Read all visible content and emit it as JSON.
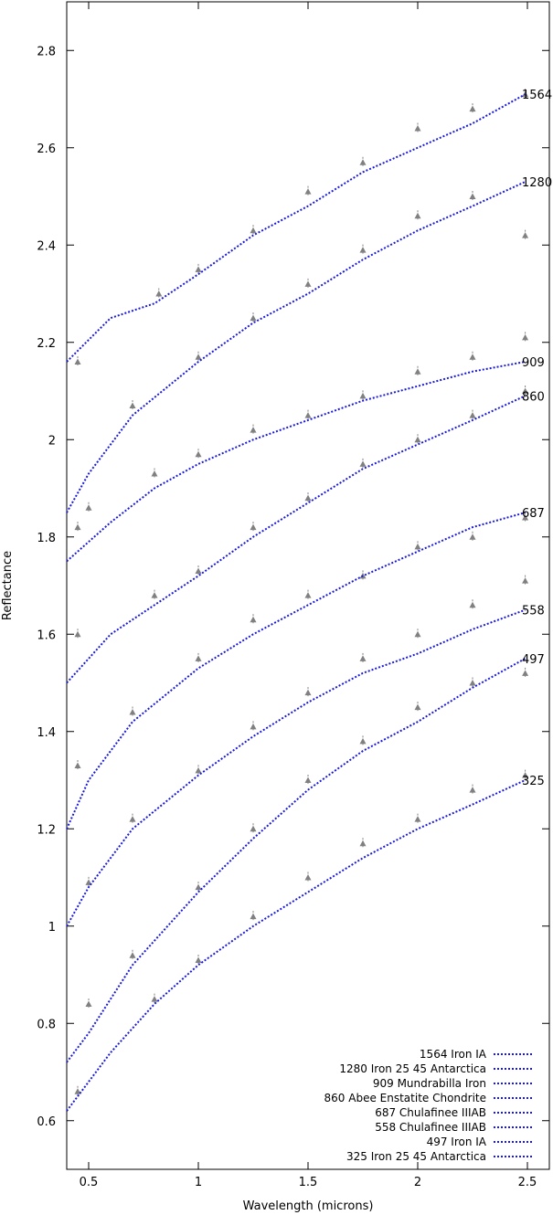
{
  "chart_data": {
    "type": "scatter",
    "title": "",
    "xlabel": "Wavelength (microns)",
    "ylabel": "Reflectance",
    "xlim": [
      0.4,
      2.6
    ],
    "ylim": [
      0.5,
      2.9
    ],
    "x_ticks": [
      {
        "value": 0.5,
        "label": "0.5"
      },
      {
        "value": 1.0,
        "label": "1"
      },
      {
        "value": 1.5,
        "label": "1.5"
      },
      {
        "value": 2.0,
        "label": "2"
      },
      {
        "value": 2.5,
        "label": "2.5"
      }
    ],
    "y_ticks": [
      {
        "value": 0.6,
        "label": "0.6"
      },
      {
        "value": 0.8,
        "label": "0.8"
      },
      {
        "value": 1.0,
        "label": "1"
      },
      {
        "value": 1.2,
        "label": "1.2"
      },
      {
        "value": 1.4,
        "label": "1.4"
      },
      {
        "value": 1.6,
        "label": "1.6"
      },
      {
        "value": 1.8,
        "label": "1.8"
      },
      {
        "value": 2.0,
        "label": "2"
      },
      {
        "value": 2.2,
        "label": "2.2"
      },
      {
        "value": 2.4,
        "label": "2.4"
      },
      {
        "value": 2.6,
        "label": "2.6"
      },
      {
        "value": 2.8,
        "label": "2.8"
      }
    ],
    "grid": false,
    "legend_position": "bottom-right",
    "colors": {
      "observed": "#808080",
      "model": "#1a1adb"
    },
    "series": [
      {
        "label": "1564",
        "model": "1564 Iron IA",
        "model_points": [
          [
            0.4,
            2.16
          ],
          [
            0.6,
            2.25
          ],
          [
            0.8,
            2.28
          ],
          [
            1.0,
            2.34
          ],
          [
            1.25,
            2.42
          ],
          [
            1.5,
            2.48
          ],
          [
            1.75,
            2.55
          ],
          [
            2.0,
            2.6
          ],
          [
            2.25,
            2.65
          ],
          [
            2.49,
            2.71
          ]
        ],
        "observed_points": [
          [
            0.45,
            2.16
          ],
          [
            0.82,
            2.3
          ],
          [
            1.0,
            2.35
          ],
          [
            1.25,
            2.43
          ],
          [
            1.5,
            2.51
          ],
          [
            1.75,
            2.57
          ],
          [
            2.0,
            2.64
          ],
          [
            2.25,
            2.68
          ],
          [
            2.49,
            2.71
          ]
        ]
      },
      {
        "label": "1280",
        "model": "1280 Iron 25 45 Antarctica",
        "model_points": [
          [
            0.4,
            1.85
          ],
          [
            0.5,
            1.93
          ],
          [
            0.7,
            2.05
          ],
          [
            1.0,
            2.16
          ],
          [
            1.25,
            2.24
          ],
          [
            1.5,
            2.3
          ],
          [
            1.75,
            2.37
          ],
          [
            2.0,
            2.43
          ],
          [
            2.25,
            2.48
          ],
          [
            2.49,
            2.53
          ]
        ],
        "observed_points": [
          [
            0.5,
            1.86
          ],
          [
            0.7,
            2.07
          ],
          [
            1.0,
            2.17
          ],
          [
            1.25,
            2.25
          ],
          [
            1.5,
            2.32
          ],
          [
            1.75,
            2.39
          ],
          [
            2.0,
            2.46
          ],
          [
            2.25,
            2.5
          ],
          [
            2.49,
            2.42
          ]
        ]
      },
      {
        "label": "909",
        "model": "909 Mundrabilla Iron",
        "model_points": [
          [
            0.4,
            1.75
          ],
          [
            0.6,
            1.83
          ],
          [
            0.8,
            1.9
          ],
          [
            1.0,
            1.95
          ],
          [
            1.25,
            2.0
          ],
          [
            1.5,
            2.04
          ],
          [
            1.75,
            2.08
          ],
          [
            2.0,
            2.11
          ],
          [
            2.25,
            2.14
          ],
          [
            2.49,
            2.16
          ]
        ],
        "observed_points": [
          [
            0.45,
            1.82
          ],
          [
            0.8,
            1.93
          ],
          [
            1.0,
            1.97
          ],
          [
            1.25,
            2.02
          ],
          [
            1.5,
            2.05
          ],
          [
            1.75,
            2.09
          ],
          [
            2.0,
            2.14
          ],
          [
            2.25,
            2.17
          ],
          [
            2.49,
            2.21
          ]
        ]
      },
      {
        "label": "860",
        "model": "860 Abee Enstatite Chondrite",
        "model_points": [
          [
            0.4,
            1.5
          ],
          [
            0.6,
            1.6
          ],
          [
            0.8,
            1.66
          ],
          [
            1.0,
            1.72
          ],
          [
            1.25,
            1.8
          ],
          [
            1.5,
            1.87
          ],
          [
            1.75,
            1.94
          ],
          [
            2.0,
            1.99
          ],
          [
            2.25,
            2.04
          ],
          [
            2.49,
            2.09
          ]
        ],
        "observed_points": [
          [
            0.45,
            1.6
          ],
          [
            0.8,
            1.68
          ],
          [
            1.0,
            1.73
          ],
          [
            1.25,
            1.82
          ],
          [
            1.5,
            1.88
          ],
          [
            1.75,
            1.95
          ],
          [
            2.0,
            2.0
          ],
          [
            2.25,
            2.05
          ],
          [
            2.49,
            2.1
          ]
        ]
      },
      {
        "label": "687",
        "model": "687 Chulafinee IIIAB",
        "model_points": [
          [
            0.4,
            1.2
          ],
          [
            0.5,
            1.3
          ],
          [
            0.7,
            1.42
          ],
          [
            1.0,
            1.53
          ],
          [
            1.25,
            1.6
          ],
          [
            1.5,
            1.66
          ],
          [
            1.75,
            1.72
          ],
          [
            2.0,
            1.77
          ],
          [
            2.25,
            1.82
          ],
          [
            2.49,
            1.85
          ]
        ],
        "observed_points": [
          [
            0.45,
            1.33
          ],
          [
            0.7,
            1.44
          ],
          [
            1.0,
            1.55
          ],
          [
            1.25,
            1.63
          ],
          [
            1.5,
            1.68
          ],
          [
            1.75,
            1.72
          ],
          [
            2.0,
            1.78
          ],
          [
            2.25,
            1.8
          ],
          [
            2.49,
            1.84
          ]
        ]
      },
      {
        "label": "558",
        "model": "558 Chulafinee IIIAB",
        "model_points": [
          [
            0.4,
            1.0
          ],
          [
            0.5,
            1.08
          ],
          [
            0.7,
            1.2
          ],
          [
            1.0,
            1.31
          ],
          [
            1.25,
            1.39
          ],
          [
            1.5,
            1.46
          ],
          [
            1.75,
            1.52
          ],
          [
            2.0,
            1.56
          ],
          [
            2.25,
            1.61
          ],
          [
            2.49,
            1.65
          ]
        ],
        "observed_points": [
          [
            0.5,
            1.09
          ],
          [
            0.7,
            1.22
          ],
          [
            1.0,
            1.32
          ],
          [
            1.25,
            1.41
          ],
          [
            1.5,
            1.48
          ],
          [
            1.75,
            1.55
          ],
          [
            2.0,
            1.6
          ],
          [
            2.25,
            1.66
          ],
          [
            2.49,
            1.71
          ]
        ]
      },
      {
        "label": "497",
        "model": "497 Iron IA",
        "model_points": [
          [
            0.4,
            0.72
          ],
          [
            0.5,
            0.78
          ],
          [
            0.7,
            0.92
          ],
          [
            1.0,
            1.07
          ],
          [
            1.25,
            1.18
          ],
          [
            1.5,
            1.28
          ],
          [
            1.75,
            1.36
          ],
          [
            2.0,
            1.42
          ],
          [
            2.25,
            1.49
          ],
          [
            2.49,
            1.55
          ]
        ],
        "observed_points": [
          [
            0.5,
            0.84
          ],
          [
            0.7,
            0.94
          ],
          [
            1.0,
            1.08
          ],
          [
            1.25,
            1.2
          ],
          [
            1.5,
            1.3
          ],
          [
            1.75,
            1.38
          ],
          [
            2.0,
            1.45
          ],
          [
            2.25,
            1.5
          ],
          [
            2.49,
            1.52
          ]
        ]
      },
      {
        "label": "325",
        "model": "325 Iron 25 45 Antarctica",
        "model_points": [
          [
            0.4,
            0.62
          ],
          [
            0.6,
            0.74
          ],
          [
            0.8,
            0.84
          ],
          [
            1.0,
            0.92
          ],
          [
            1.25,
            1.0
          ],
          [
            1.5,
            1.07
          ],
          [
            1.75,
            1.14
          ],
          [
            2.0,
            1.2
          ],
          [
            2.25,
            1.25
          ],
          [
            2.49,
            1.3
          ]
        ],
        "observed_points": [
          [
            0.45,
            0.66
          ],
          [
            0.8,
            0.85
          ],
          [
            1.0,
            0.93
          ],
          [
            1.25,
            1.02
          ],
          [
            1.5,
            1.1
          ],
          [
            1.75,
            1.17
          ],
          [
            2.0,
            1.22
          ],
          [
            2.25,
            1.28
          ],
          [
            2.49,
            1.31
          ]
        ]
      }
    ]
  }
}
